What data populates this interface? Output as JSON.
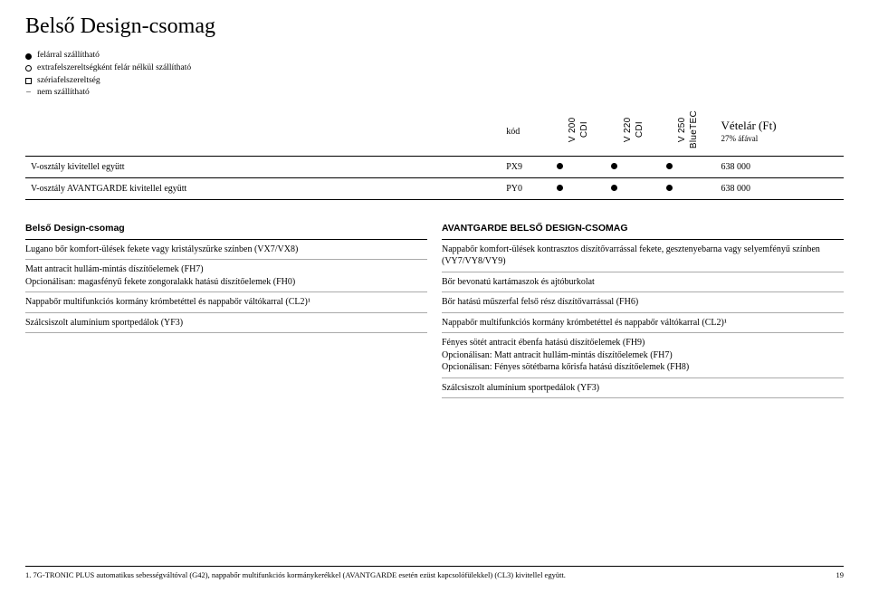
{
  "title": "Belső Design-csomag",
  "legend": {
    "dot": "felárral szállítható",
    "circle": "extrafelszereltségként felár nélkül szállítható",
    "square": "szériafelszereltség",
    "dash": "nem szállítható"
  },
  "table": {
    "kod_label": "kód",
    "cols": [
      "V 200 CDI",
      "V 220 CDI",
      "V 250 BlueTEC"
    ],
    "price_label": "Vételár (Ft)",
    "price_sub": "27% áfával",
    "rows": [
      {
        "name": "V-osztály kivitellel együtt",
        "kod": "PX9",
        "v": [
          "dot",
          "dot",
          "dot"
        ],
        "price": "638 000"
      },
      {
        "name": "V-osztály AVANTGARDE kivitellel együtt",
        "kod": "PY0",
        "v": [
          "dot",
          "dot",
          "dot"
        ],
        "price": "638 000"
      }
    ]
  },
  "left": {
    "heading": "Belső Design-csomag",
    "items": [
      "Lugano bőr komfort-ülések fekete vagy kristályszürke színben (VX7/VX8)",
      "Matt antracit hullám-mintás díszítőelemek (FH7)\nOpcionálisan: magasfényű fekete zongoralakk hatású díszítőelemek (FH0)",
      "Nappabőr multifunkciós kormány krómbetéttel és nappabőr váltókarral (CL2)¹",
      "Szálcsiszolt alumínium sportpedálok (YF3)"
    ]
  },
  "right": {
    "heading": "AVANTGARDE BELSŐ DESIGN-CSOMAG",
    "items": [
      "Nappabőr komfort-ülések kontrasztos díszítővarrással fekete, gesztenyebarna vagy selyemfényű színben (VY7/VY8/VY9)",
      "Bőr bevonatú kartámaszok és ajtóburkolat",
      "Bőr hatású műszerfal felső rész díszítővarrással (FH6)",
      "Nappabőr multifunkciós kormány krómbetéttel és nappabőr váltókarral (CL2)¹",
      "Fényes sötét antracit ébenfa hatású díszítőelemek (FH9)\nOpcionálisan: Matt antracit hullám-mintás díszítőelemek (FH7)\nOpcionálisan: Fényes sötétbarna kőrisfa hatású díszítőelemek (FH8)",
      "Szálcsiszolt alumínium sportpedálok (YF3)"
    ]
  },
  "footnote": "1. 7G-TRONIC PLUS automatikus sebességváltóval (G42), nappabőr multifunkciós kormánykerékkel (AVANTGARDE esetén ezüst kapcsolófülekkel) (CL3) kivitellel együtt.",
  "page_number": "19"
}
